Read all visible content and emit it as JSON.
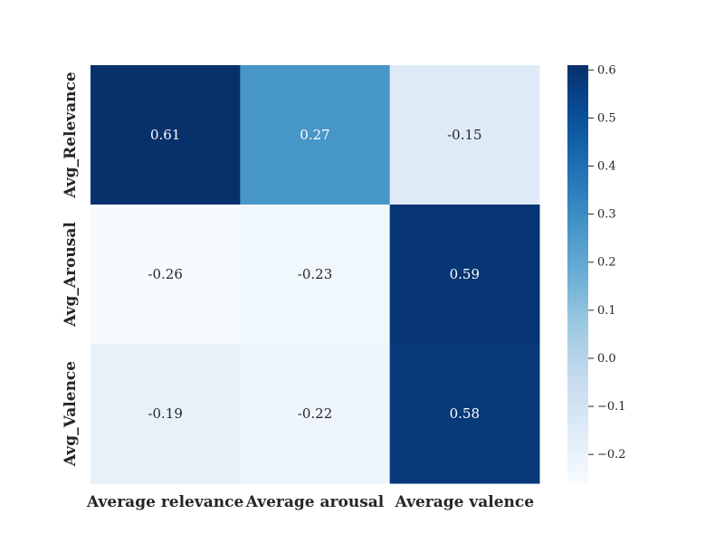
{
  "chart_data": {
    "type": "heatmap",
    "title": "",
    "xlabel": "",
    "ylabel": "",
    "x_categories": [
      "Average relevance",
      "Average arousal",
      "Average valence"
    ],
    "y_categories": [
      "Avg_Relevance",
      "Avg_Arousal",
      "Avg_Valence"
    ],
    "values": [
      [
        0.61,
        0.27,
        -0.15
      ],
      [
        -0.26,
        -0.23,
        0.59
      ],
      [
        -0.19,
        -0.22,
        0.58
      ]
    ],
    "annotations": [
      [
        "0.61",
        "0.27",
        "-0.15"
      ],
      [
        "-0.26",
        "-0.23",
        "0.59"
      ],
      [
        "-0.19",
        "-0.22",
        "0.58"
      ]
    ],
    "colormap": "Blues",
    "color_range": [
      -0.26,
      0.61
    ],
    "colorbar": {
      "ticks": [
        -0.2,
        -0.1,
        0.0,
        0.1,
        0.2,
        0.3,
        0.4,
        0.5,
        0.6
      ],
      "tick_labels": [
        "−0.2",
        "−0.1",
        "0.0",
        "0.1",
        "0.2",
        "0.3",
        "0.4",
        "0.5",
        "0.6"
      ],
      "placement": "right"
    },
    "grid": false
  }
}
